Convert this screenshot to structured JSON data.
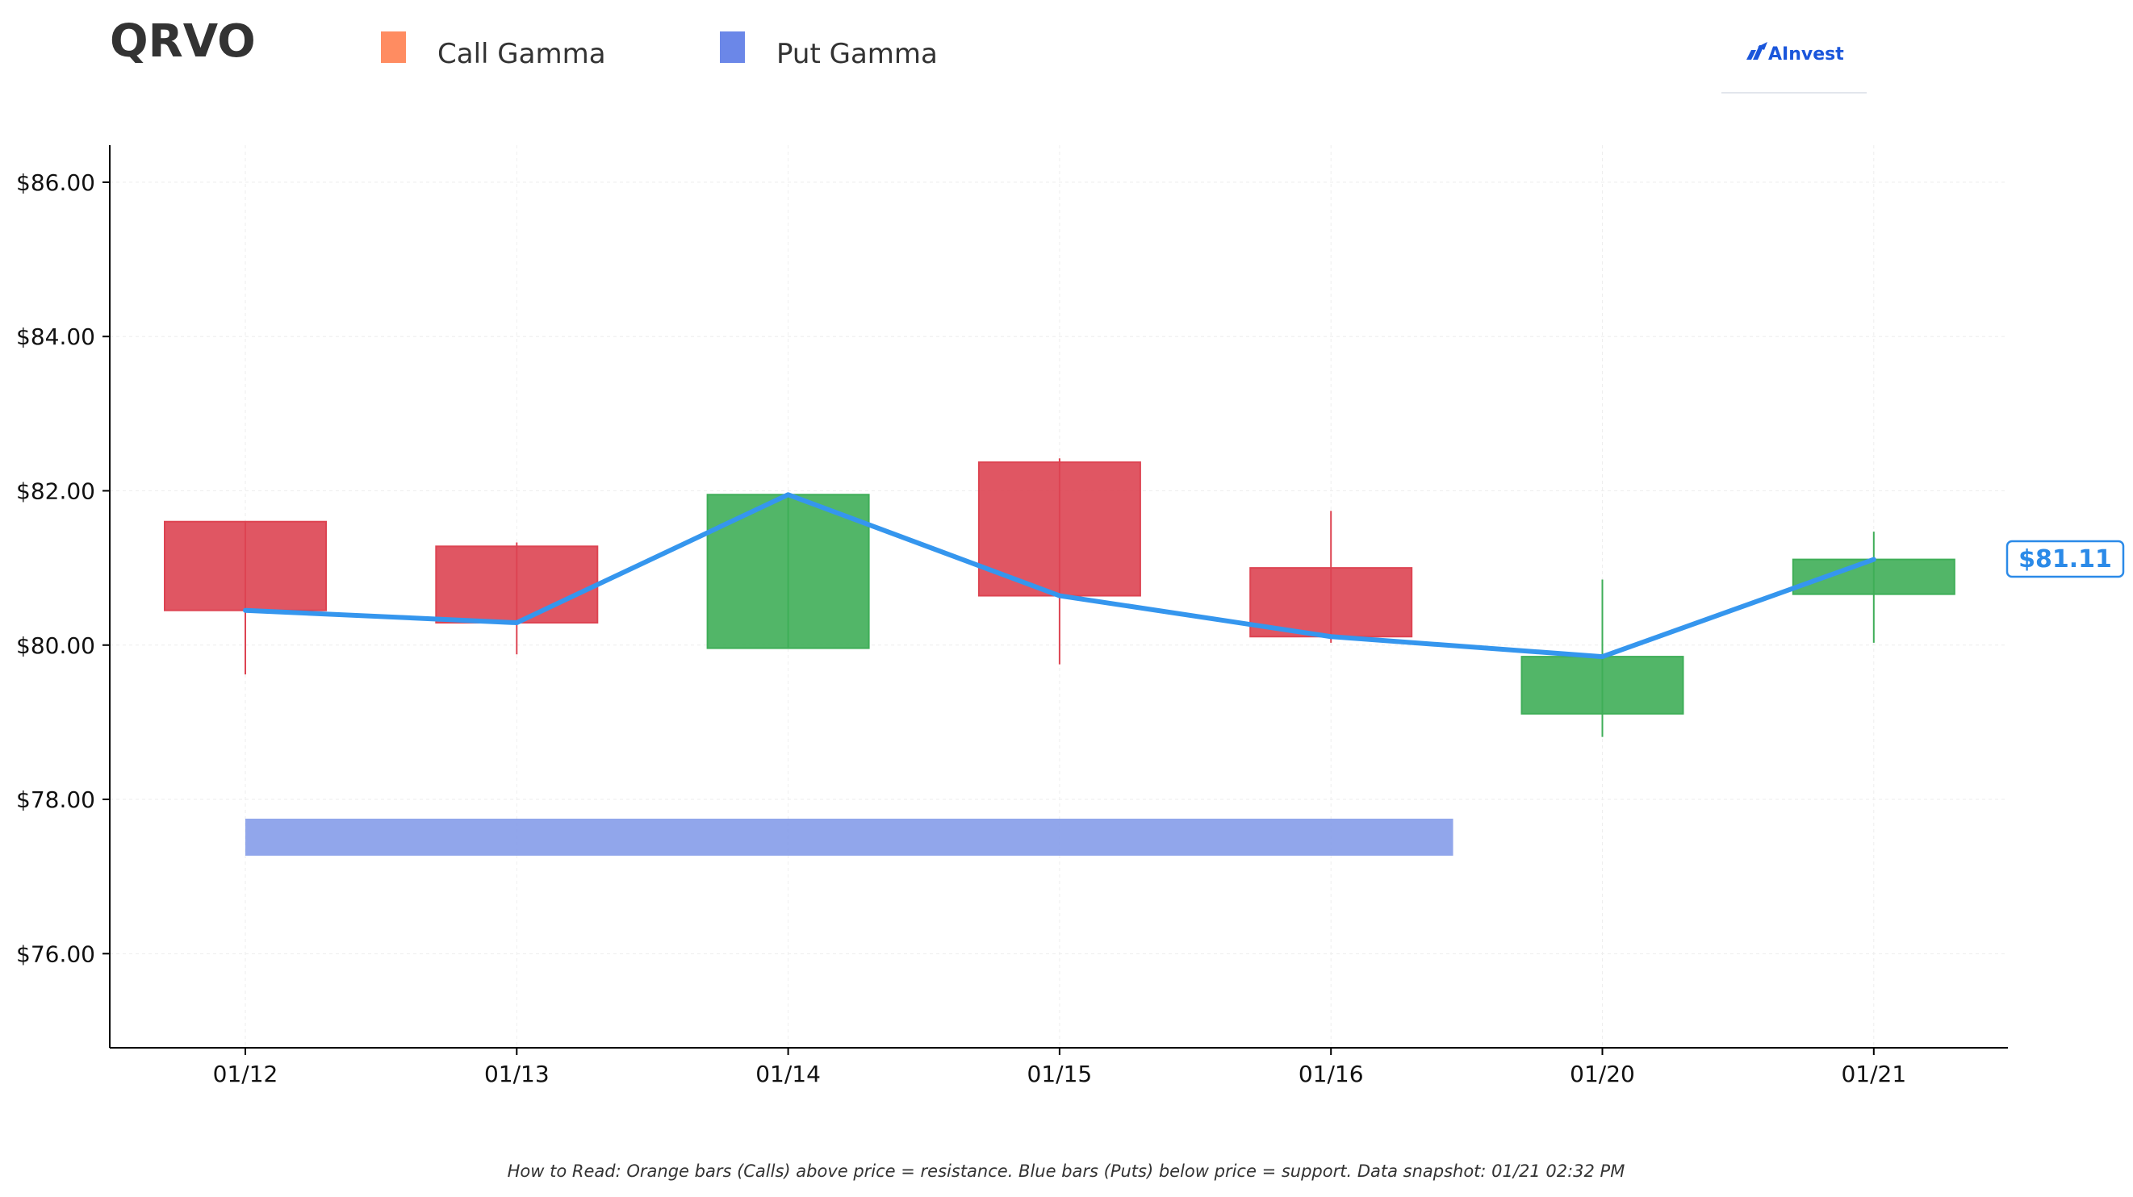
{
  "header": {
    "ticker": "QRVO",
    "legend": [
      {
        "label": "Call Gamma",
        "color": "#ff8c61"
      },
      {
        "label": "Put Gamma",
        "color": "#6b87e8"
      }
    ],
    "brand": {
      "name": "AInvest",
      "icon": "ainvest-logo-icon"
    }
  },
  "footnote": "How to Read: Orange bars (Calls) above price = resistance. Blue bars (Puts) below price = support. Data snapshot: 01/21 02:32 PM",
  "chart_data": {
    "type": "candlestick",
    "categories": [
      "01/12",
      "01/13",
      "01/14",
      "01/15",
      "01/16",
      "01/20",
      "01/21"
    ],
    "ohlc": [
      {
        "date": "01/12",
        "open": 81.6,
        "high": 81.6,
        "low": 79.62,
        "close": 80.45
      },
      {
        "date": "01/13",
        "open": 81.28,
        "high": 81.33,
        "low": 79.88,
        "close": 80.29
      },
      {
        "date": "01/14",
        "open": 79.96,
        "high": 81.95,
        "low": 79.96,
        "close": 81.95
      },
      {
        "date": "01/15",
        "open": 82.37,
        "high": 82.42,
        "low": 79.75,
        "close": 80.64
      },
      {
        "date": "01/16",
        "open": 81.0,
        "high": 81.74,
        "low": 80.03,
        "close": 80.11
      },
      {
        "date": "01/20",
        "open": 79.11,
        "high": 80.85,
        "low": 78.81,
        "close": 79.85
      },
      {
        "date": "01/21",
        "open": 80.66,
        "high": 81.47,
        "low": 80.03,
        "close": 81.11
      }
    ],
    "close_line": [
      80.45,
      80.29,
      81.95,
      80.64,
      80.11,
      79.85,
      81.11
    ],
    "current_price_label": "$81.11",
    "put_gamma_zone": {
      "from": "01/12",
      "to_x": 4.45,
      "low": 77.27,
      "high": 77.75
    },
    "y_ticks": [
      {
        "value": 76,
        "label": "$76.00"
      },
      {
        "value": 78,
        "label": "$78.00"
      },
      {
        "value": 80,
        "label": "$80.00"
      },
      {
        "value": 82,
        "label": "$82.00"
      },
      {
        "value": 84,
        "label": "$84.00"
      },
      {
        "value": 86,
        "label": "$86.00"
      }
    ],
    "ylim": [
      74.78,
      86.48
    ],
    "grid": true,
    "legend_position": "top-left",
    "colors": {
      "up": "#3fae58",
      "down": "#dd4452",
      "close_line": "#3596ee",
      "put_zone": "#7e96e8"
    }
  }
}
